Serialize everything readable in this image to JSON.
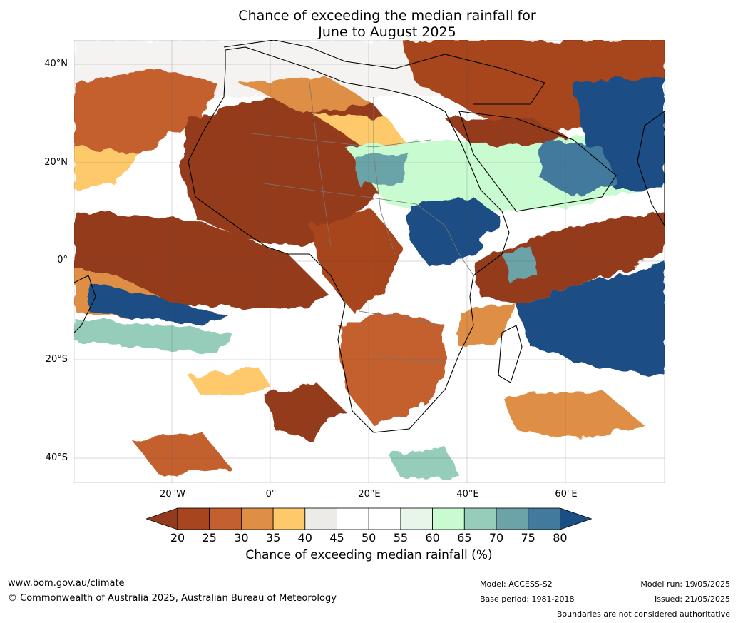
{
  "title": {
    "line1": "Chance of exceeding the median rainfall for",
    "line2": "June to August 2025"
  },
  "axes": {
    "lat_labels": [
      "40°N",
      "20°N",
      "0°",
      "20°S",
      "40°S"
    ],
    "lon_labels": [
      "20°W",
      "0°",
      "20°E",
      "40°E",
      "60°E"
    ]
  },
  "colorbar": {
    "ticks": [
      "20",
      "25",
      "30",
      "35",
      "40",
      "45",
      "50",
      "55",
      "60",
      "65",
      "70",
      "75",
      "80"
    ],
    "colors": [
      "#943a1e",
      "#a7451f",
      "#c45f2f",
      "#de8f45",
      "#fdc96b",
      "#ecebe8",
      "#ffffff",
      "#ffffff",
      "#e7f6e9",
      "#c8fbcf",
      "#95ccba",
      "#6ba3a8",
      "#427a9d",
      "#1a4e84"
    ],
    "label": "Chance of exceeding median rainfall (%)"
  },
  "footer": {
    "website": "www.bom.gov.au/climate",
    "copyright": "© Commonwealth of Australia 2025, Australian Bureau of Meteorology",
    "model": "Model: ACCESS-S2",
    "base_period": "Base period: 1981-2018",
    "model_run": "Model run: 19/05/2025",
    "issued": "Issued: 21/05/2025",
    "disclaimer": "Boundaries are not considered authoritative"
  }
}
